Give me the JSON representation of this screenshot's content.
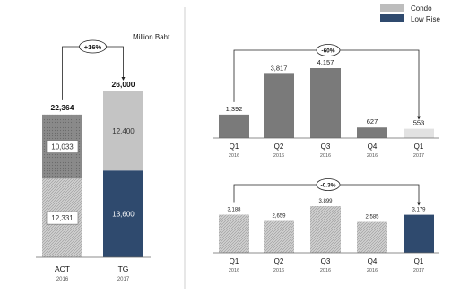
{
  "unit_label": "Million Baht",
  "legend": [
    {
      "label": "Condo",
      "color": "#bdbdbd"
    },
    {
      "label": "Low Rise",
      "color": "#2f4a6e"
    }
  ],
  "colors": {
    "condo_dark": "#7a7a7a",
    "condo_light": "#c4c4c4",
    "condo_hatch": "#d6d6d6",
    "low_rise": "#2f4a6e",
    "q1_2017_light": "#e2e2e2"
  },
  "chart_data": [
    {
      "type": "bar",
      "stacked": true,
      "categories": [
        "ACT",
        "TG"
      ],
      "years": [
        "2016",
        "2017"
      ],
      "series": [
        {
          "name": "Low Rise",
          "values": [
            12331,
            13600
          ],
          "labels": [
            "12,331",
            "13,600"
          ]
        },
        {
          "name": "Condo",
          "values": [
            10033,
            12400
          ],
          "labels": [
            "10,033",
            "12,400"
          ]
        }
      ],
      "totals": [
        "22,364",
        "26,000"
      ],
      "growth_label": "+16%"
    },
    {
      "type": "bar",
      "categories": [
        "Q1",
        "Q2",
        "Q3",
        "Q4",
        "Q1"
      ],
      "years": [
        "2016",
        "2016",
        "2016",
        "2016",
        "2017"
      ],
      "values": [
        1392,
        3817,
        4157,
        627,
        553
      ],
      "labels": [
        "1,392",
        "3,817",
        "4,157",
        "627",
        "553"
      ],
      "change_label": "-60%"
    },
    {
      "type": "bar",
      "categories": [
        "Q1",
        "Q2",
        "Q3",
        "Q4",
        "Q1"
      ],
      "years": [
        "2016",
        "2016",
        "2016",
        "2016",
        "2017"
      ],
      "values": [
        3.188,
        2.659,
        3.899,
        2.585,
        3.179
      ],
      "labels": [
        "3,188",
        "2,659",
        "3,899",
        "2,585",
        "3,179"
      ],
      "change_label": "-0.3%"
    }
  ]
}
